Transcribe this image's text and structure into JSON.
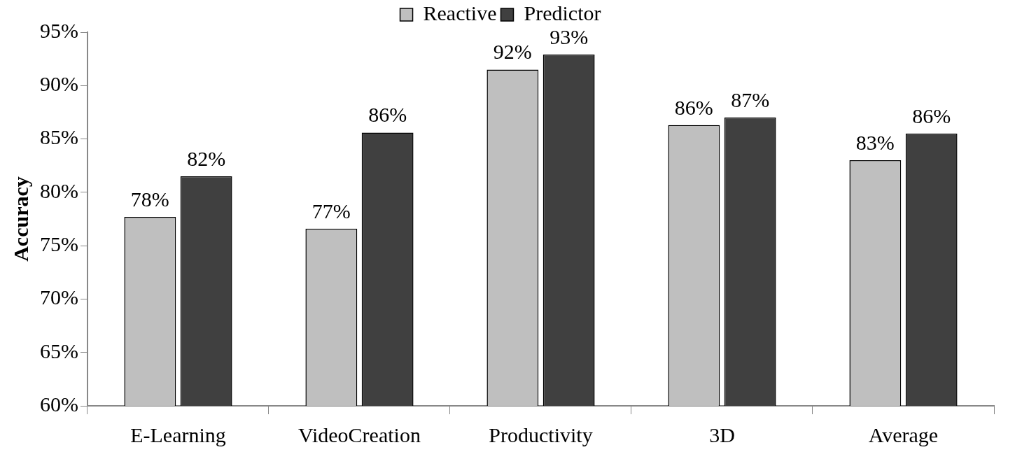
{
  "chart_data": {
    "type": "bar",
    "ylabel": "Accuracy",
    "categories": [
      "E-Learning",
      "VideoCreation",
      "Productivity",
      "3D",
      "Average"
    ],
    "series": [
      {
        "name": "Reactive",
        "color": "#bfbfbf",
        "values": [
          77.7,
          76.6,
          91.5,
          86.3,
          83.0
        ],
        "value_labels": [
          "78%",
          "77%",
          "92%",
          "86%",
          "83%"
        ]
      },
      {
        "name": "Predictor",
        "color": "#404040",
        "values": [
          81.5,
          85.6,
          92.9,
          87.0,
          85.5
        ],
        "value_labels": [
          "82%",
          "86%",
          "93%",
          "87%",
          "86%"
        ]
      }
    ],
    "ylim": [
      60,
      95
    ],
    "yticks": [
      {
        "value": 60,
        "label": "60%"
      },
      {
        "value": 65,
        "label": "65%"
      },
      {
        "value": 70,
        "label": "70%"
      },
      {
        "value": 75,
        "label": "75%"
      },
      {
        "value": 80,
        "label": "80%"
      },
      {
        "value": 85,
        "label": "85%"
      },
      {
        "value": 90,
        "label": "90%"
      },
      {
        "value": 95,
        "label": "95%"
      }
    ],
    "grid": false,
    "legend": "top"
  }
}
